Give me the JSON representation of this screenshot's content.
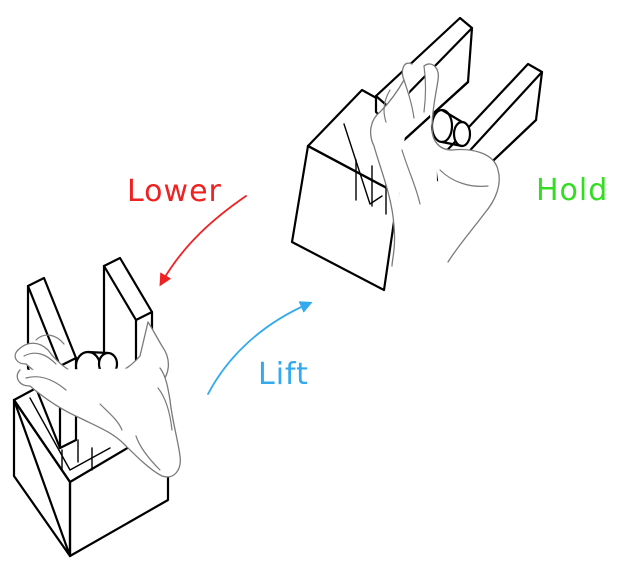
{
  "labels": {
    "lower": "Lower",
    "lift": "Lift",
    "hold": "Hold"
  },
  "colors": {
    "lower": "#ee2222",
    "lift": "#33aaee",
    "hold": "#33dd22",
    "outline": "#000000",
    "hand": "#7a7a7a"
  }
}
